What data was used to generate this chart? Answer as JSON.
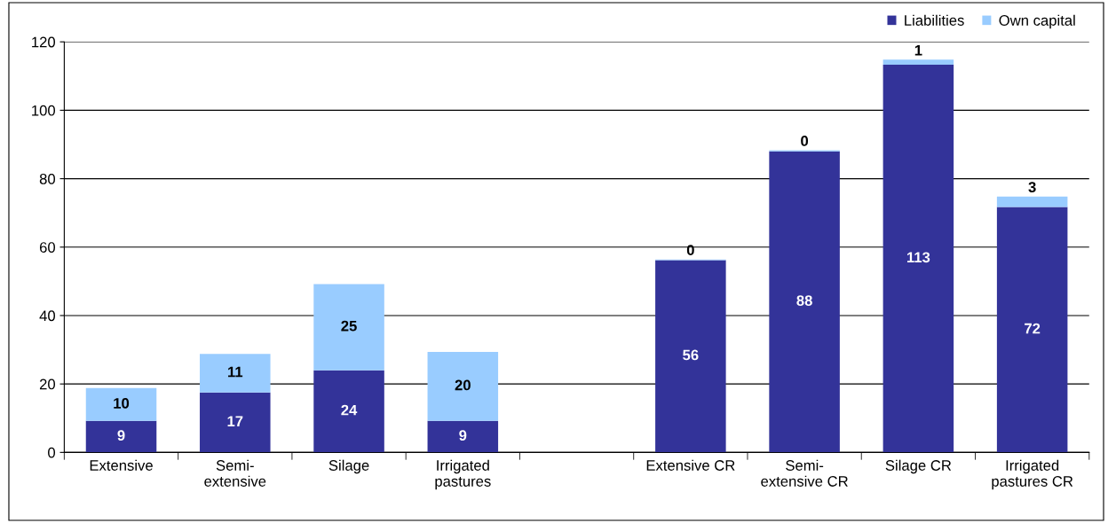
{
  "chart_data": {
    "type": "bar",
    "stacked": true,
    "categories": [
      "Extensive",
      "Semi-\nextensive",
      "Silage",
      "Irrigated\npastures",
      null,
      "Extensive CR",
      "Semi-\nextensive CR",
      "Silage CR",
      "Irrigated\npastures CR"
    ],
    "series": [
      {
        "name": "Liabilities",
        "color": "#333399",
        "values": [
          9.2,
          17.5,
          24,
          9.2,
          null,
          56.2,
          88,
          113.3,
          71.7
        ],
        "value_labels": [
          "9",
          "17",
          "24",
          "9",
          null,
          "56",
          "88",
          "113",
          "72"
        ]
      },
      {
        "name": "Own capital",
        "color": "#99ccff",
        "values": [
          9.6,
          11.3,
          25.2,
          20.2,
          null,
          0.2,
          0.3,
          1.5,
          3.1
        ],
        "value_labels": [
          "10",
          "11",
          "25",
          "20",
          null,
          "0",
          "0",
          "1",
          "3"
        ]
      }
    ],
    "ylim": [
      0,
      120
    ],
    "yticks": [
      0,
      20,
      40,
      60,
      80,
      100,
      120
    ],
    "grid": "y",
    "legend": "top right"
  }
}
